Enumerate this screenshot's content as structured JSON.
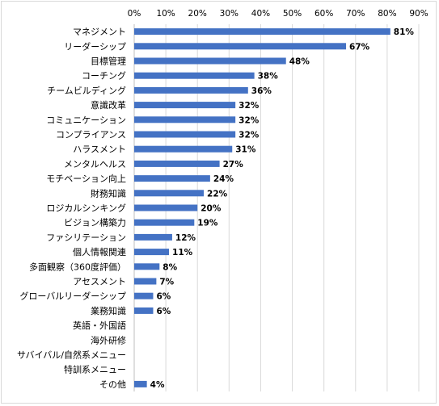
{
  "chart_data": {
    "type": "bar",
    "orientation": "horizontal",
    "title": "",
    "xlabel": "",
    "ylabel": "",
    "xlim": [
      0,
      90
    ],
    "x_ticks": [
      "0%",
      "10%",
      "20%",
      "30%",
      "40%",
      "50%",
      "60%",
      "70%",
      "80%",
      "90%"
    ],
    "x_tick_values": [
      0,
      10,
      20,
      30,
      40,
      50,
      60,
      70,
      80,
      90
    ],
    "grid": true,
    "bar_color": "#4472c4",
    "categories": [
      "マネジメント",
      "リーダーシップ",
      "目標管理",
      "コーチング",
      "チームビルディング",
      "意識改革",
      "コミュニケーション",
      "コンプライアンス",
      "ハラスメント",
      "メンタルヘルス",
      "モチベーション向上",
      "財務知識",
      "ロジカルシンキング",
      "ビジョン構築力",
      "ファシリテーション",
      "個人情報関連",
      "多面観察（360度評価）",
      "アセスメント",
      "グローバルリーダーシップ",
      "業務知識",
      "英語・外国語",
      "海外研修",
      "サバイバル/自然系メニュー",
      "特訓系メニュー",
      "その他"
    ],
    "values": [
      81,
      67,
      48,
      38,
      36,
      32,
      32,
      32,
      31,
      27,
      24,
      22,
      20,
      19,
      12,
      11,
      8,
      7,
      6,
      6,
      null,
      null,
      null,
      null,
      4
    ],
    "data_labels": [
      "81%",
      "67%",
      "48%",
      "38%",
      "36%",
      "32%",
      "32%",
      "32%",
      "31%",
      "27%",
      "24%",
      "22%",
      "20%",
      "19%",
      "12%",
      "11%",
      "8%",
      "7%",
      "6%",
      "6%",
      "",
      "",
      "",
      "",
      "4%"
    ]
  }
}
